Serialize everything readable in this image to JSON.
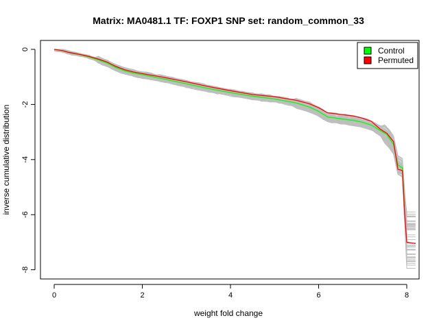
{
  "chart_data": {
    "type": "line",
    "title": "Matrix: MA0481.1 TF: FOXP1 SNP set: random_common_33",
    "xlabel": "weight fold change",
    "ylabel": "inverse cumulative distribution",
    "xlim": [
      -0.3,
      8.25
    ],
    "ylim": [
      -8.3,
      0.2
    ],
    "x_ticks": [
      0,
      2,
      4,
      6,
      8
    ],
    "y_ticks": [
      0,
      -2,
      -4,
      -6,
      -8
    ],
    "grid": false,
    "legend_position": "top-right",
    "legend": [
      {
        "label": "Control",
        "color": "#00ff00"
      },
      {
        "label": "Permuted",
        "color": "#ff0000"
      }
    ],
    "colors": {
      "background_runs": "#bebebe",
      "control": "#00ff00",
      "permuted": "#ff0000"
    },
    "background_runs_count": 50,
    "series": [
      {
        "name": "Control",
        "color": "#00ff00",
        "x": [
          0,
          0.2,
          0.3,
          0.4,
          0.6,
          0.8,
          1.0,
          1.2,
          1.4,
          1.6,
          1.8,
          2.0,
          2.5,
          3.0,
          3.5,
          4.0,
          4.5,
          5.0,
          5.5,
          5.8,
          6.0,
          6.2,
          6.5,
          6.8,
          7.0,
          7.2,
          7.4,
          7.55,
          7.7,
          7.8,
          7.9,
          7.95
        ],
        "y": [
          0,
          -0.05,
          -0.1,
          -0.14,
          -0.2,
          -0.28,
          -0.38,
          -0.5,
          -0.66,
          -0.78,
          -0.86,
          -0.92,
          -1.08,
          -1.25,
          -1.42,
          -1.57,
          -1.7,
          -1.8,
          -1.95,
          -2.1,
          -2.25,
          -2.45,
          -2.52,
          -2.58,
          -2.65,
          -2.75,
          -2.95,
          -3.1,
          -3.45,
          -4.2,
          -4.3,
          -5.7
        ]
      },
      {
        "name": "Permuted",
        "color": "#ff0000",
        "x": [
          0,
          0.2,
          0.3,
          0.4,
          0.6,
          0.8,
          1.0,
          1.2,
          1.4,
          1.6,
          1.8,
          2.0,
          2.5,
          3.0,
          3.5,
          4.0,
          4.5,
          5.0,
          5.5,
          5.8,
          6.0,
          6.2,
          6.5,
          6.8,
          7.0,
          7.2,
          7.4,
          7.55,
          7.7,
          7.8,
          7.9,
          7.95,
          8.0,
          8.2
        ],
        "y": [
          0,
          -0.05,
          -0.1,
          -0.13,
          -0.19,
          -0.26,
          -0.35,
          -0.46,
          -0.62,
          -0.74,
          -0.82,
          -0.88,
          -1.02,
          -1.18,
          -1.35,
          -1.5,
          -1.64,
          -1.72,
          -1.85,
          -1.98,
          -2.12,
          -2.3,
          -2.36,
          -2.42,
          -2.5,
          -2.62,
          -2.9,
          -3.05,
          -3.35,
          -4.35,
          -4.4,
          -5.9,
          -7.0,
          -7.05
        ]
      }
    ]
  }
}
